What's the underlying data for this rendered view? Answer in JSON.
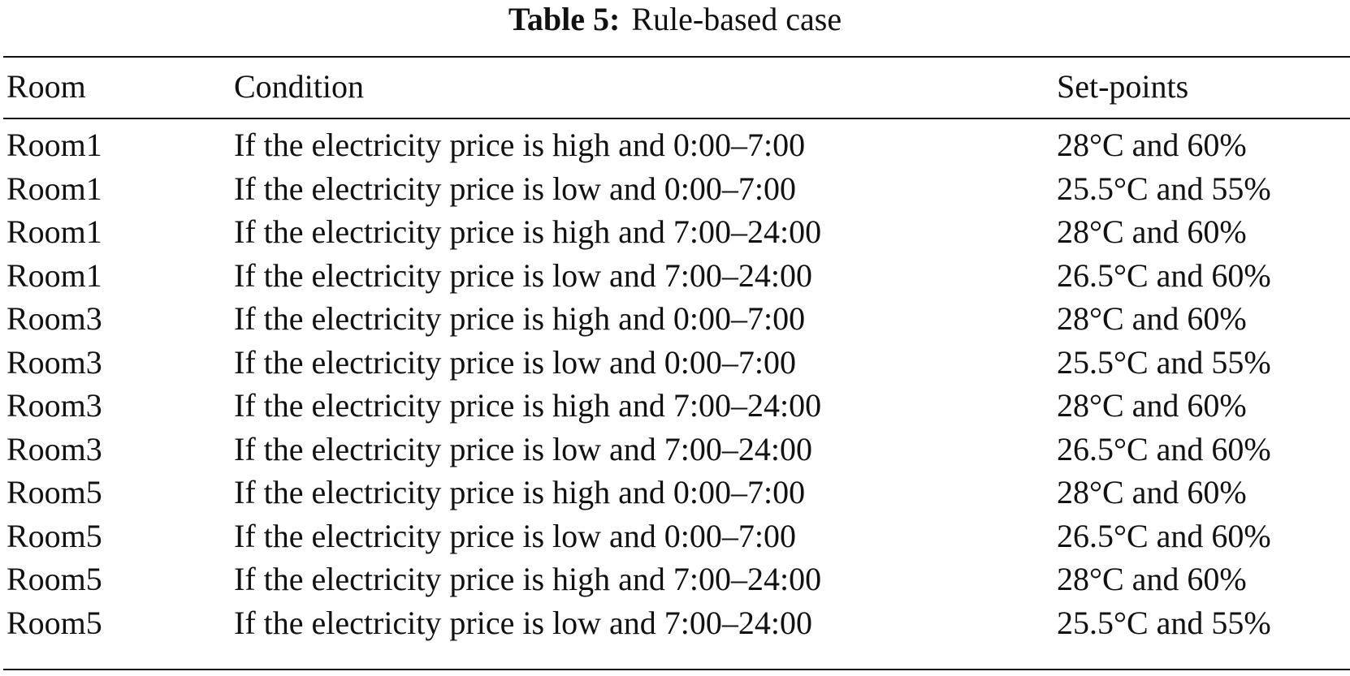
{
  "caption": {
    "label": "Table 5:",
    "title": "Rule-based case"
  },
  "table": {
    "headers": [
      "Room",
      "Condition",
      "Set-points"
    ],
    "rows": [
      [
        "Room1",
        "If the electricity price is high and 0:00–7:00",
        "28°C and 60%"
      ],
      [
        "Room1",
        "If the electricity price is low and 0:00–7:00",
        "25.5°C and 55%"
      ],
      [
        "Room1",
        "If the electricity price is high and 7:00–24:00",
        "28°C and 60%"
      ],
      [
        "Room1",
        "If the electricity price is low and 7:00–24:00",
        "26.5°C and 60%"
      ],
      [
        "Room3",
        "If the electricity price is high and 0:00–7:00",
        "28°C and 60%"
      ],
      [
        "Room3",
        "If the electricity price is low and 0:00–7:00",
        "25.5°C and 55%"
      ],
      [
        "Room3",
        "If the electricity price is high and 7:00–24:00",
        "28°C and 60%"
      ],
      [
        "Room3",
        "If the electricity price is low and 7:00–24:00",
        "26.5°C and 60%"
      ],
      [
        "Room5",
        "If the electricity price is high and 0:00–7:00",
        "28°C and 60%"
      ],
      [
        "Room5",
        "If the electricity price is low and 0:00–7:00",
        "26.5°C and 60%"
      ],
      [
        "Room5",
        "If the electricity price is high and 7:00–24:00",
        "28°C and 60%"
      ],
      [
        "Room5",
        "If the electricity price is low and 7:00–24:00",
        "25.5°C and 55%"
      ]
    ]
  }
}
